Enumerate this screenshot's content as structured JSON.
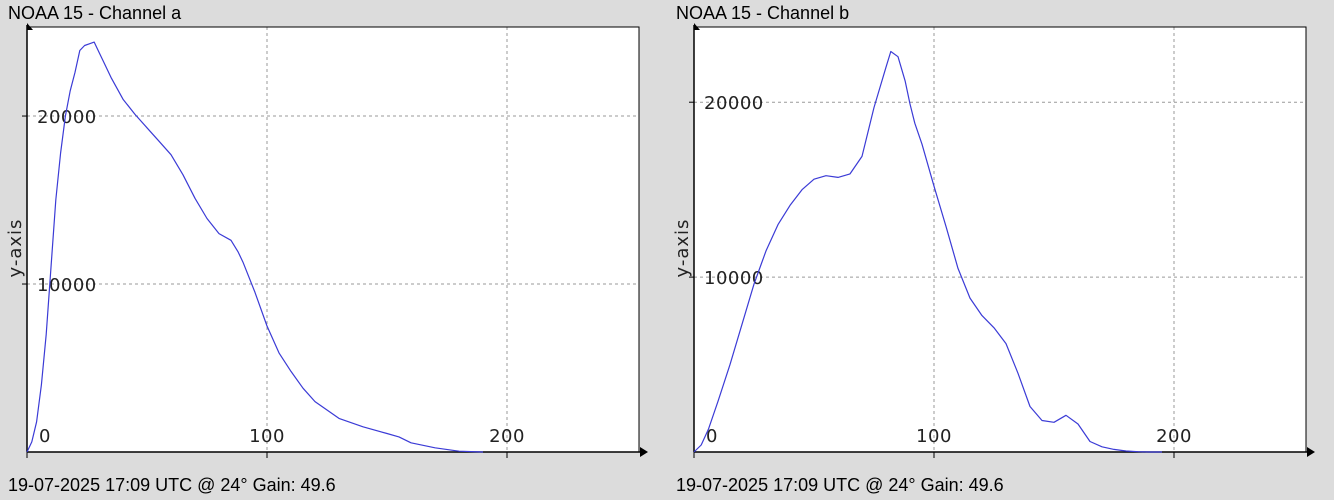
{
  "colors": {
    "background": "#dcdcdc",
    "plot_background": "#ffffff",
    "series_line": "#3b3bd6",
    "grid": "#9a9a9a",
    "axis": "#000000"
  },
  "panels": [
    {
      "title": "NOAA 15 - Channel a",
      "footer": "19-07-2025 17:09 UTC @ 24° Gain: 49.6"
    },
    {
      "title": "NOAA 15 - Channel b",
      "footer": "19-07-2025 17:09 UTC @ 24° Gain: 49.6"
    }
  ],
  "chart_data": [
    {
      "type": "line",
      "title": "NOAA 15 - Channel a",
      "xlabel": "",
      "ylabel": "y-axis",
      "xlim": [
        0,
        255
      ],
      "ylim": [
        0,
        25300
      ],
      "xticks": [
        0,
        100,
        200
      ],
      "xtick_labels": [
        "0",
        "100",
        "200"
      ],
      "yticks": [
        10000,
        20000
      ],
      "ytick_labels": [
        "10000",
        "20000"
      ],
      "grid": true,
      "series": [
        {
          "x": [
            0,
            2,
            4,
            6,
            8,
            10,
            12,
            14,
            16,
            18,
            20,
            22,
            24,
            26,
            28,
            30,
            32,
            35,
            40,
            45,
            50,
            55,
            60,
            65,
            70,
            75,
            80,
            85,
            88,
            90,
            95,
            100,
            105,
            110,
            115,
            120,
            130,
            140,
            150,
            155,
            160,
            170,
            180,
            190
          ],
          "y": [
            0,
            600,
            1800,
            4000,
            7000,
            11000,
            15000,
            17800,
            20000,
            21500,
            22600,
            23900,
            24200,
            24300,
            24400,
            23800,
            23200,
            22300,
            21000,
            20100,
            19300,
            18500,
            17700,
            16500,
            15100,
            13900,
            13000,
            12600,
            11900,
            11300,
            9500,
            7500,
            5900,
            4800,
            3800,
            3000,
            2000,
            1500,
            1100,
            900,
            550,
            250,
            50,
            0
          ]
        }
      ]
    },
    {
      "type": "line",
      "title": "NOAA 15 - Channel b",
      "xlabel": "",
      "ylabel": "y-axis",
      "xlim": [
        0,
        255
      ],
      "ylim": [
        0,
        24300
      ],
      "xticks": [
        0,
        100,
        200
      ],
      "xtick_labels": [
        "0",
        "100",
        "200"
      ],
      "yticks": [
        10000,
        20000
      ],
      "ytick_labels": [
        "10000",
        "20000"
      ],
      "grid": true,
      "series": [
        {
          "x": [
            0,
            3,
            6,
            10,
            15,
            20,
            25,
            30,
            35,
            40,
            45,
            50,
            55,
            60,
            65,
            70,
            75,
            80,
            82,
            85,
            88,
            90,
            92,
            95,
            100,
            105,
            110,
            115,
            120,
            125,
            130,
            135,
            140,
            145,
            150,
            155,
            160,
            163,
            165,
            170,
            175,
            180,
            185,
            190,
            195
          ],
          "y": [
            0,
            400,
            1300,
            2900,
            5000,
            7300,
            9600,
            11500,
            13000,
            14100,
            15000,
            15600,
            15800,
            15700,
            15900,
            16900,
            19700,
            22000,
            22900,
            22600,
            21200,
            19900,
            18800,
            17600,
            15200,
            12900,
            10500,
            8800,
            7800,
            7100,
            6200,
            4500,
            2600,
            1800,
            1700,
            2100,
            1600,
            1000,
            600,
            300,
            150,
            60,
            20,
            0,
            0
          ]
        }
      ]
    }
  ]
}
